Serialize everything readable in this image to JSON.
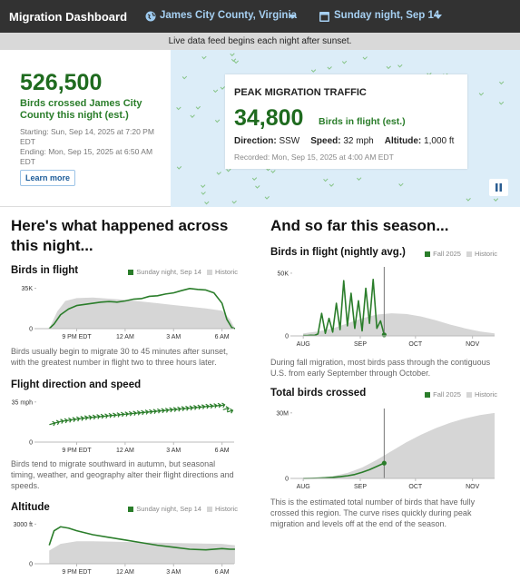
{
  "header": {
    "title": "Migration Dashboard",
    "location": "James City County, Virginia",
    "date": "Sunday night, Sep 14"
  },
  "banner": "Live data feed begins each night after sunset.",
  "hero": {
    "total": "526,500",
    "total_label": "Birds crossed James City County this night (est.)",
    "start": "Starting: Sun, Sep 14, 2025 at 7:20 PM EDT",
    "end": "Ending: Mon, Sep 15, 2025 at 6:50 AM EDT",
    "button": "Learn more"
  },
  "peak": {
    "heading": "PEAK MIGRATION TRAFFIC",
    "value": "34,800",
    "value_label": "Birds in flight (est.)",
    "stats": [
      {
        "label": "Direction:",
        "value": "SSW"
      },
      {
        "label": "Speed:",
        "value": "32 mph"
      },
      {
        "label": "Altitude:",
        "value": "1,000 ft"
      }
    ],
    "recorded": "Recorded: Mon, Sep 15, 2025 at 4:00 AM EDT"
  },
  "night": {
    "heading": "Here's what happened across this night...",
    "charts": [
      {
        "type": "line",
        "title": "Birds in flight",
        "legend": true,
        "xlim": [
          18.5,
          30.75
        ],
        "ylim": [
          0,
          37000
        ],
        "xticks": [
          {
            "value": 21,
            "label": "9 PM EDT"
          },
          {
            "value": 24,
            "label": "12 AM"
          },
          {
            "value": 27,
            "label": "3 AM"
          },
          {
            "value": 30,
            "label": "6 AM"
          }
        ],
        "yticks": [
          {
            "value": 35000,
            "label": "35K"
          },
          0
        ],
        "series": [
          {
            "name": "Sunday night, Sep 14",
            "color": "#2a7d2a",
            "style": "line",
            "x": [
              19.3,
              19.6,
              20,
              20.5,
              21,
              21.5,
              22,
              22.5,
              23,
              23.5,
              24,
              24.5,
              25,
              25.5,
              26,
              26.5,
              27,
              27.5,
              28,
              28.5,
              29,
              29.5,
              30,
              30.3,
              30.6,
              30.8
            ],
            "values": [
              0,
              4000,
              12000,
              17000,
              20000,
              21000,
              22000,
              23000,
              23500,
              23000,
              24000,
              25500,
              26000,
              28000,
              28500,
              30000,
              31000,
              33000,
              34800,
              34000,
              33500,
              31000,
              22000,
              8000,
              1000,
              0
            ]
          },
          {
            "name": "Historic",
            "color": "#d6d6d6",
            "style": "area",
            "x": [
              19.3,
              19.8,
              20.3,
              21,
              22,
              23,
              24,
              25,
              26,
              27,
              28,
              29,
              30,
              30.5,
              30.8
            ],
            "values": [
              0,
              15000,
              24000,
              26500,
              27000,
              26000,
              25000,
              23500,
              22000,
              20500,
              19000,
              17500,
              15500,
              8000,
              0
            ]
          }
        ],
        "caption": "Birds usually begin to migrate 30 to 45 minutes after sunset, with the greatest number in flight two to three hours later."
      },
      {
        "type": "line",
        "title": "Flight direction and speed",
        "legend": false,
        "xlim": [
          18.5,
          30.75
        ],
        "ylim": [
          0,
          38
        ],
        "xticks": [
          {
            "value": 21,
            "label": "9 PM EDT"
          },
          {
            "value": 24,
            "label": "12 AM"
          },
          {
            "value": 27,
            "label": "3 AM"
          },
          {
            "value": 30,
            "label": "6 AM"
          }
        ],
        "yticks": [
          {
            "value": 35,
            "label": "35 mph"
          },
          0
        ],
        "series": [
          {
            "name": "Speed",
            "color": "#2a7d2a",
            "style": "arrows",
            "x": [
              19.5,
              19.75,
              20,
              20.25,
              20.5,
              20.75,
              21,
              21.25,
              21.5,
              21.75,
              22,
              22.25,
              22.5,
              22.75,
              23,
              23.25,
              23.5,
              23.75,
              24,
              24.25,
              24.5,
              24.75,
              25,
              25.25,
              25.5,
              25.75,
              26,
              26.25,
              26.5,
              26.75,
              27,
              27.25,
              27.5,
              27.75,
              28,
              28.25,
              28.5,
              28.75,
              29,
              29.25,
              29.5,
              29.75,
              30,
              30.25,
              30.5
            ],
            "values": [
              16,
              17,
              18,
              18.5,
              19,
              19.5,
              20,
              20.5,
              21,
              21.3,
              21.6,
              22,
              22.3,
              22.6,
              23,
              23.3,
              23.6,
              24,
              24.3,
              24.6,
              25,
              25.3,
              25.6,
              26,
              26.3,
              26.6,
              27,
              27.3,
              27.6,
              28,
              28.3,
              28.6,
              29,
              29.3,
              29.6,
              30,
              30.3,
              30.6,
              31,
              31.2,
              31.5,
              31.8,
              32,
              29,
              27
            ]
          }
        ],
        "caption": "Birds tend to migrate southward in autumn, but seasonal timing, weather, and geography alter their flight directions and speeds."
      },
      {
        "type": "line",
        "title": "Altitude",
        "legend": true,
        "xlim": [
          18.5,
          30.75
        ],
        "ylim": [
          0,
          3300
        ],
        "xticks": [
          {
            "value": 21,
            "label": "9 PM EDT"
          },
          {
            "value": 24,
            "label": "12 AM"
          },
          {
            "value": 27,
            "label": "3 AM"
          },
          {
            "value": 30,
            "label": "6 AM"
          }
        ],
        "yticks": [
          {
            "value": 3000,
            "label": "3000 ft"
          },
          0
        ],
        "series": [
          {
            "name": "Sunday night, Sep 14",
            "color": "#2a7d2a",
            "style": "line",
            "x": [
              19.3,
              19.6,
              20,
              20.5,
              21,
              22,
              23,
              24,
              25,
              26,
              27,
              28,
              29,
              30,
              30.5,
              30.8
            ],
            "values": [
              1400,
              2500,
              2800,
              2700,
              2500,
              2200,
              2000,
              1800,
              1600,
              1400,
              1250,
              1100,
              1050,
              1150,
              1100,
              1100
            ]
          },
          {
            "name": "Historic",
            "color": "#d6d6d6",
            "style": "area",
            "x": [
              19.3,
              20,
              21,
              22,
              24,
              26,
              28,
              30,
              30.8
            ],
            "values": [
              1000,
              1500,
              1700,
              1700,
              1650,
              1600,
              1550,
              1500,
              1400
            ]
          }
        ]
      }
    ]
  },
  "season": {
    "heading": "And so far this season...",
    "charts": [
      {
        "type": "line",
        "title": "Birds in flight (nightly avg.)",
        "legend": true,
        "today_line": true,
        "end_marker": true,
        "xlim": [
          -6,
          104
        ],
        "ylim": [
          0,
          55000
        ],
        "xticks": [
          {
            "value": 0,
            "label": "AUG"
          },
          {
            "value": 31,
            "label": "SEP"
          },
          {
            "value": 61,
            "label": "OCT"
          },
          {
            "value": 92,
            "label": "NOV"
          }
        ],
        "yticks": [
          {
            "value": 50000,
            "label": "50K"
          },
          0
        ],
        "series": [
          {
            "name": "Fall 2025",
            "color": "#2a7d2a",
            "style": "line",
            "x": [
              0,
              2,
              4,
              6,
              8,
              10,
              12,
              14,
              16,
              18,
              20,
              22,
              24,
              26,
              28,
              30,
              32,
              34,
              36,
              38,
              40,
              42,
              44
            ],
            "values": [
              300,
              200,
              500,
              400,
              1500,
              18000,
              2000,
              14000,
              3000,
              26000,
              5000,
              44000,
              8000,
              34000,
              6000,
              28000,
              4000,
              38000,
              10000,
              45000,
              6000,
              12000,
              800
            ]
          },
          {
            "name": "Historic",
            "color": "#d6d6d6",
            "style": "area",
            "x": [
              0,
              8,
              16,
              24,
              32,
              40,
              48,
              56,
              64,
              72,
              80,
              88,
              96,
              104
            ],
            "values": [
              2000,
              3500,
              6000,
              10000,
              14000,
              17000,
              18000,
              17500,
              15500,
              12500,
              9000,
              6000,
              3500,
              2000
            ]
          }
        ],
        "caption": "During fall migration, most birds pass through the contiguous U.S. from early September through October."
      },
      {
        "type": "line",
        "title": "Total birds crossed",
        "legend": true,
        "today_line": true,
        "end_marker": true,
        "xlim": [
          -6,
          104
        ],
        "ylim": [
          0,
          32000000
        ],
        "xticks": [
          {
            "value": 0,
            "label": "AUG"
          },
          {
            "value": 31,
            "label": "SEP"
          },
          {
            "value": 61,
            "label": "OCT"
          },
          {
            "value": 92,
            "label": "NOV"
          }
        ],
        "yticks": [
          {
            "value": 30000000,
            "label": "30M"
          },
          0
        ],
        "series": [
          {
            "name": "Fall 2025",
            "color": "#2a7d2a",
            "style": "line",
            "x": [
              0,
              4,
              8,
              12,
              16,
              20,
              24,
              28,
              32,
              36,
              40,
              44
            ],
            "values": [
              0,
              50000,
              150000,
              300000,
              500000,
              800000,
              1200000,
              1800000,
              2800000,
              4000000,
              5500000,
              7000000
            ]
          },
          {
            "name": "Historic",
            "color": "#d6d6d6",
            "style": "area",
            "x": [
              0,
              8,
              16,
              24,
              32,
              40,
              48,
              56,
              64,
              72,
              80,
              88,
              96,
              104
            ],
            "values": [
              0,
              300000,
              1000000,
              2500000,
              5000000,
              8500000,
              12500000,
              16500000,
              20000000,
              23000000,
              25500000,
              27500000,
              29000000,
              30000000
            ]
          }
        ],
        "caption": "This is the estimated total number of birds that have fully crossed this region. The curve rises quickly during peak migration and levels off at the end of the season."
      }
    ]
  }
}
